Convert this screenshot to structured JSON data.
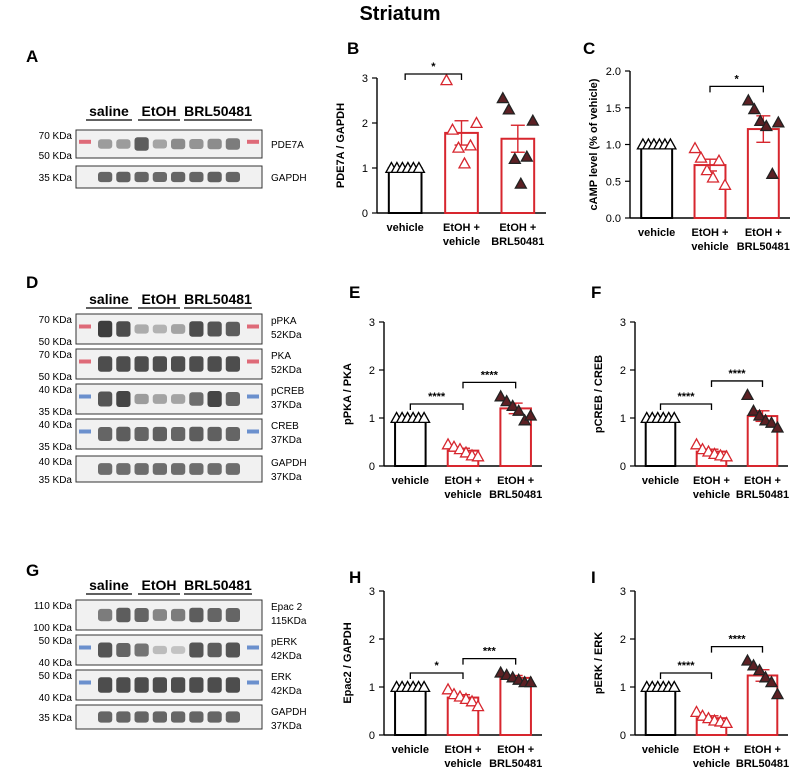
{
  "title": "Striatum",
  "colors": {
    "vehicle": "#000000",
    "etoh_vehicle": "#d7262e",
    "etoh_brl": "#d7262e",
    "brl_fill": "#5c2024",
    "blot_ink": "#2b2b2b",
    "marker_red": "#d9495a",
    "marker_blue": "#4a78c4"
  },
  "groups": {
    "saline": "saline",
    "etoh": "EtOH",
    "brl": "BRL50481"
  },
  "categories": [
    "vehicle",
    "EtOH + vehicle",
    "EtOH + BRL50481"
  ],
  "blot_panels": [
    {
      "letter": "A",
      "rows": [
        {
          "kda": [
            "70 KDa",
            "50 KDa"
          ],
          "right": [
            "PDE7A"
          ],
          "lanes": [
            0.35,
            0.35,
            0.75,
            0.3,
            0.45,
            0.4,
            0.45,
            0.55
          ],
          "marker": "red"
        },
        {
          "kda": [
            "35 KDa"
          ],
          "right": [
            "GAPDH"
          ],
          "lanes": [
            0.7,
            0.72,
            0.7,
            0.68,
            0.7,
            0.7,
            0.72,
            0.7
          ],
          "marker": "none"
        }
      ]
    },
    {
      "letter": "D",
      "rows": [
        {
          "kda": [
            "70 KDa",
            "50 KDa"
          ],
          "right": [
            "pPKA",
            "52KDa"
          ],
          "lanes": [
            0.95,
            0.85,
            0.25,
            0.2,
            0.3,
            0.85,
            0.8,
            0.75
          ],
          "marker": "red"
        },
        {
          "kda": [
            "70 KDa",
            "50 KDa"
          ],
          "right": [
            "PKA",
            "52KDa"
          ],
          "lanes": [
            0.85,
            0.85,
            0.85,
            0.85,
            0.85,
            0.85,
            0.85,
            0.85
          ],
          "marker": "red"
        },
        {
          "kda": [
            "40 KDa",
            "35 KDa"
          ],
          "right": [
            "pCREB",
            "37KDa"
          ],
          "lanes": [
            0.8,
            0.9,
            0.35,
            0.3,
            0.3,
            0.65,
            0.9,
            0.7
          ],
          "marker": "blue"
        },
        {
          "kda": [
            "40 KDa",
            "35 KDa"
          ],
          "right": [
            "CREB",
            "37KDa"
          ],
          "lanes": [
            0.7,
            0.75,
            0.7,
            0.72,
            0.7,
            0.75,
            0.72,
            0.7
          ],
          "marker": "blue"
        },
        {
          "kda": [
            "40 KDa",
            "35 KDa"
          ],
          "right": [
            "GAPDH",
            "37KDa"
          ],
          "lanes": [
            0.65,
            0.65,
            0.65,
            0.65,
            0.65,
            0.65,
            0.65,
            0.65
          ],
          "marker": "none"
        }
      ]
    },
    {
      "letter": "G",
      "rows": [
        {
          "kda": [
            "110 KDa",
            "100 KDa"
          ],
          "right": [
            "Epac 2",
            "115KDa"
          ],
          "lanes": [
            0.55,
            0.75,
            0.7,
            0.5,
            0.55,
            0.75,
            0.7,
            0.7
          ],
          "marker": "none"
        },
        {
          "kda": [
            "50 KDa",
            "40 KDa"
          ],
          "right": [
            "pERK",
            "42KDa"
          ],
          "lanes": [
            0.8,
            0.7,
            0.6,
            0.15,
            0.1,
            0.8,
            0.75,
            0.8
          ],
          "marker": "blue"
        },
        {
          "kda": [
            "50 KDa",
            "40 KDa"
          ],
          "right": [
            "ERK",
            "42KDa"
          ],
          "lanes": [
            0.85,
            0.85,
            0.85,
            0.85,
            0.85,
            0.85,
            0.85,
            0.85
          ],
          "marker": "blue"
        },
        {
          "kda": [
            "35 KDa"
          ],
          "right": [
            "GAPDH",
            "37KDa"
          ],
          "lanes": [
            0.7,
            0.7,
            0.7,
            0.7,
            0.7,
            0.7,
            0.7,
            0.7
          ],
          "marker": "none"
        }
      ]
    }
  ],
  "chart_data": [
    {
      "id": "B",
      "type": "bar",
      "letter": "B",
      "ylabel": "PDE7A / GAPDH",
      "ylim": [
        0,
        3
      ],
      "yticks": [
        "0",
        "1",
        "2",
        "3"
      ],
      "categories": [
        "vehicle",
        "EtOH + vehicle",
        "EtOH + BRL50481"
      ],
      "means": [
        1.0,
        1.78,
        1.65
      ],
      "sems": [
        0.0,
        0.27,
        0.3
      ],
      "points": [
        [
          1,
          1,
          1,
          1,
          1,
          1
        ],
        [
          2.95,
          1.85,
          1.45,
          1.1,
          1.5,
          2.0
        ],
        [
          2.55,
          2.3,
          1.2,
          0.65,
          1.25,
          2.05
        ]
      ],
      "sig": [
        {
          "from": 0,
          "to": 1,
          "label": "*"
        }
      ]
    },
    {
      "id": "C",
      "type": "bar",
      "letter": "C",
      "ylabel": "cAMP level (% of vehicle)",
      "ylim": [
        0,
        2
      ],
      "yticks": [
        "0.0",
        "0.5",
        "1.0",
        "1.5",
        "2.0"
      ],
      "categories": [
        "vehicle",
        "EtOH + vehicle",
        "EtOH + BRL50481"
      ],
      "means": [
        1.0,
        0.72,
        1.21
      ],
      "sems": [
        0.0,
        0.08,
        0.18
      ],
      "points": [
        [
          1,
          1,
          1,
          1,
          1,
          1
        ],
        [
          0.95,
          0.82,
          0.65,
          0.55,
          0.78,
          0.45
        ],
        [
          1.6,
          1.48,
          1.32,
          1.25,
          0.6,
          1.3
        ]
      ],
      "sig": [
        {
          "from": 1,
          "to": 2,
          "label": "*"
        }
      ]
    },
    {
      "id": "E",
      "type": "bar",
      "letter": "E",
      "ylabel": "pPKA / PKA",
      "ylim": [
        0,
        3
      ],
      "yticks": [
        "0",
        "1",
        "2",
        "3"
      ],
      "categories": [
        "vehicle",
        "EtOH + vehicle",
        "EtOH + BRL50481"
      ],
      "means": [
        1.0,
        0.32,
        1.2
      ],
      "sems": [
        0.0,
        0.05,
        0.11
      ],
      "points": [
        [
          1,
          1,
          1,
          1,
          1,
          1
        ],
        [
          0.45,
          0.4,
          0.35,
          0.28,
          0.22,
          0.2
        ],
        [
          1.45,
          1.35,
          1.25,
          1.15,
          0.95,
          1.05
        ]
      ],
      "sig": [
        {
          "from": 0,
          "to": 1,
          "label": "****"
        },
        {
          "from": 1,
          "to": 2,
          "label": "****"
        }
      ]
    },
    {
      "id": "F",
      "type": "bar",
      "letter": "F",
      "ylabel": "pCREB / CREB",
      "ylim": [
        0,
        3
      ],
      "yticks": [
        "0",
        "1",
        "2",
        "3"
      ],
      "categories": [
        "vehicle",
        "EtOH + vehicle",
        "EtOH + BRL50481"
      ],
      "means": [
        1.0,
        0.3,
        1.04
      ],
      "sems": [
        0.0,
        0.05,
        0.11
      ],
      "points": [
        [
          1,
          1,
          1,
          1,
          1,
          1
        ],
        [
          0.45,
          0.35,
          0.3,
          0.25,
          0.22,
          0.2
        ],
        [
          1.48,
          1.15,
          1.05,
          0.95,
          0.9,
          0.8
        ]
      ],
      "sig": [
        {
          "from": 0,
          "to": 1,
          "label": "****"
        },
        {
          "from": 1,
          "to": 2,
          "label": "****"
        }
      ]
    },
    {
      "id": "H",
      "type": "bar",
      "letter": "H",
      "ylabel": "Epac2 / GAPDH",
      "ylim": [
        0,
        3
      ],
      "yticks": [
        "0",
        "1",
        "2",
        "3"
      ],
      "categories": [
        "vehicle",
        "EtOH + vehicle",
        "EtOH + BRL50481"
      ],
      "means": [
        1.0,
        0.78,
        1.19
      ],
      "sems": [
        0.0,
        0.06,
        0.05
      ],
      "points": [
        [
          1,
          1,
          1,
          1,
          1,
          1
        ],
        [
          0.95,
          0.85,
          0.8,
          0.75,
          0.7,
          0.6
        ],
        [
          1.3,
          1.25,
          1.2,
          1.15,
          1.1,
          1.1
        ]
      ],
      "sig": [
        {
          "from": 0,
          "to": 1,
          "label": "*"
        },
        {
          "from": 1,
          "to": 2,
          "label": "***"
        }
      ]
    },
    {
      "id": "I",
      "type": "bar",
      "letter": "I",
      "ylabel": "pERK / ERK",
      "ylim": [
        0,
        3
      ],
      "yticks": [
        "0",
        "1",
        "2",
        "3"
      ],
      "categories": [
        "vehicle",
        "EtOH + vehicle",
        "EtOH + BRL50481"
      ],
      "means": [
        1.0,
        0.35,
        1.24
      ],
      "sems": [
        0.0,
        0.05,
        0.12
      ],
      "points": [
        [
          1,
          1,
          1,
          1,
          1,
          1
        ],
        [
          0.48,
          0.4,
          0.35,
          0.3,
          0.28,
          0.25
        ],
        [
          1.55,
          1.45,
          1.35,
          1.2,
          1.1,
          0.85
        ]
      ],
      "sig": [
        {
          "from": 0,
          "to": 1,
          "label": "****"
        },
        {
          "from": 1,
          "to": 2,
          "label": "****"
        }
      ]
    }
  ]
}
